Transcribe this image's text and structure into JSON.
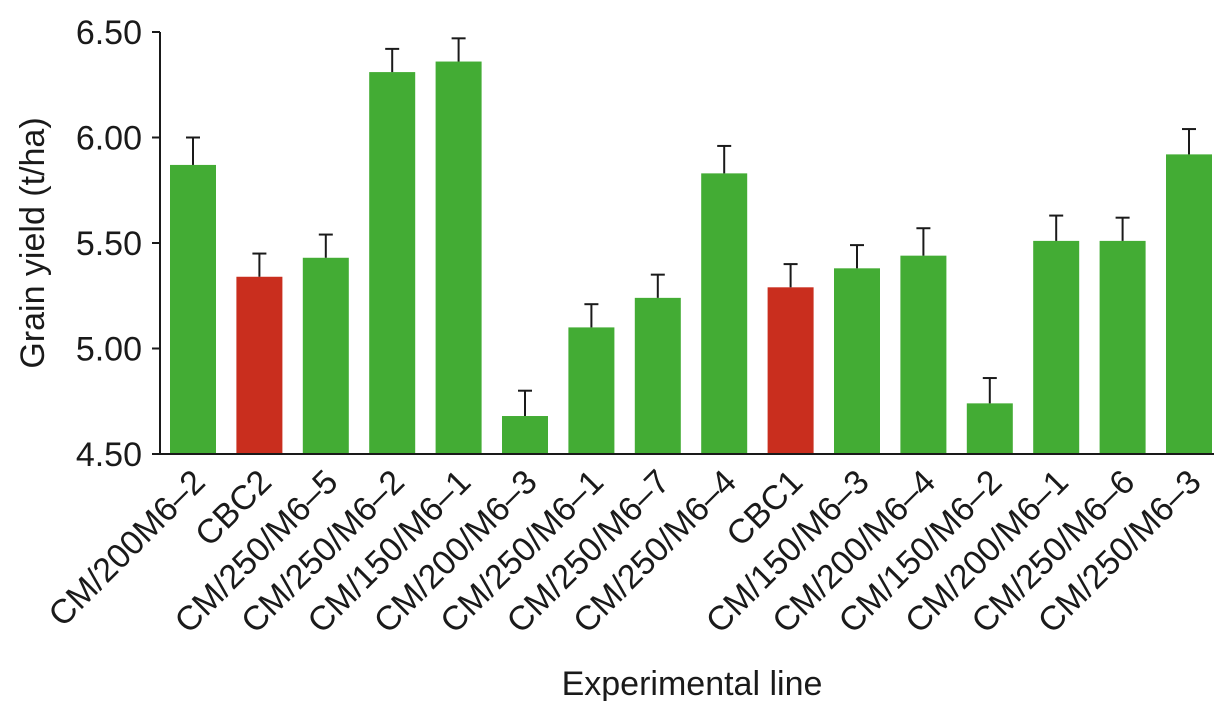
{
  "chart_data": {
    "type": "bar",
    "xlabel": "Experimental line",
    "ylabel": "Grain yield (t/ha)",
    "ylim": [
      4.5,
      6.5
    ],
    "yticks": [
      "4.50",
      "5.00",
      "5.50",
      "6.00",
      "6.50"
    ],
    "grid": false,
    "categories": [
      "CM/200M6–2",
      "CBC2",
      "CM/250/M6–5",
      "CM/250/M6–2",
      "CM/150/M6–1",
      "CM/200/M6–3",
      "CM/250/M6–1",
      "CM/250/M6–7",
      "CM/250/M6–4",
      "CBC1",
      "CM/150/M6–3",
      "CM/200/M6–4",
      "CM/150/M6–2",
      "CM/200/M6–1",
      "CM/250/M6–6",
      "CM/250/M6–3"
    ],
    "values": [
      5.87,
      5.34,
      5.43,
      6.31,
      6.36,
      4.68,
      5.1,
      5.24,
      5.83,
      5.29,
      5.38,
      5.44,
      4.74,
      5.51,
      5.51,
      5.92
    ],
    "errors": [
      0.13,
      0.11,
      0.11,
      0.11,
      0.11,
      0.12,
      0.11,
      0.11,
      0.13,
      0.11,
      0.11,
      0.13,
      0.12,
      0.12,
      0.11,
      0.12
    ],
    "bar_colors": [
      "#43ac34",
      "#c92e1e",
      "#43ac34",
      "#43ac34",
      "#43ac34",
      "#43ac34",
      "#43ac34",
      "#43ac34",
      "#43ac34",
      "#c92e1e",
      "#43ac34",
      "#43ac34",
      "#43ac34",
      "#43ac34",
      "#43ac34",
      "#43ac34"
    ],
    "colors": {
      "treatment": "#43ac34",
      "control": "#c92e1e",
      "axis": "#1a1a1a"
    }
  }
}
